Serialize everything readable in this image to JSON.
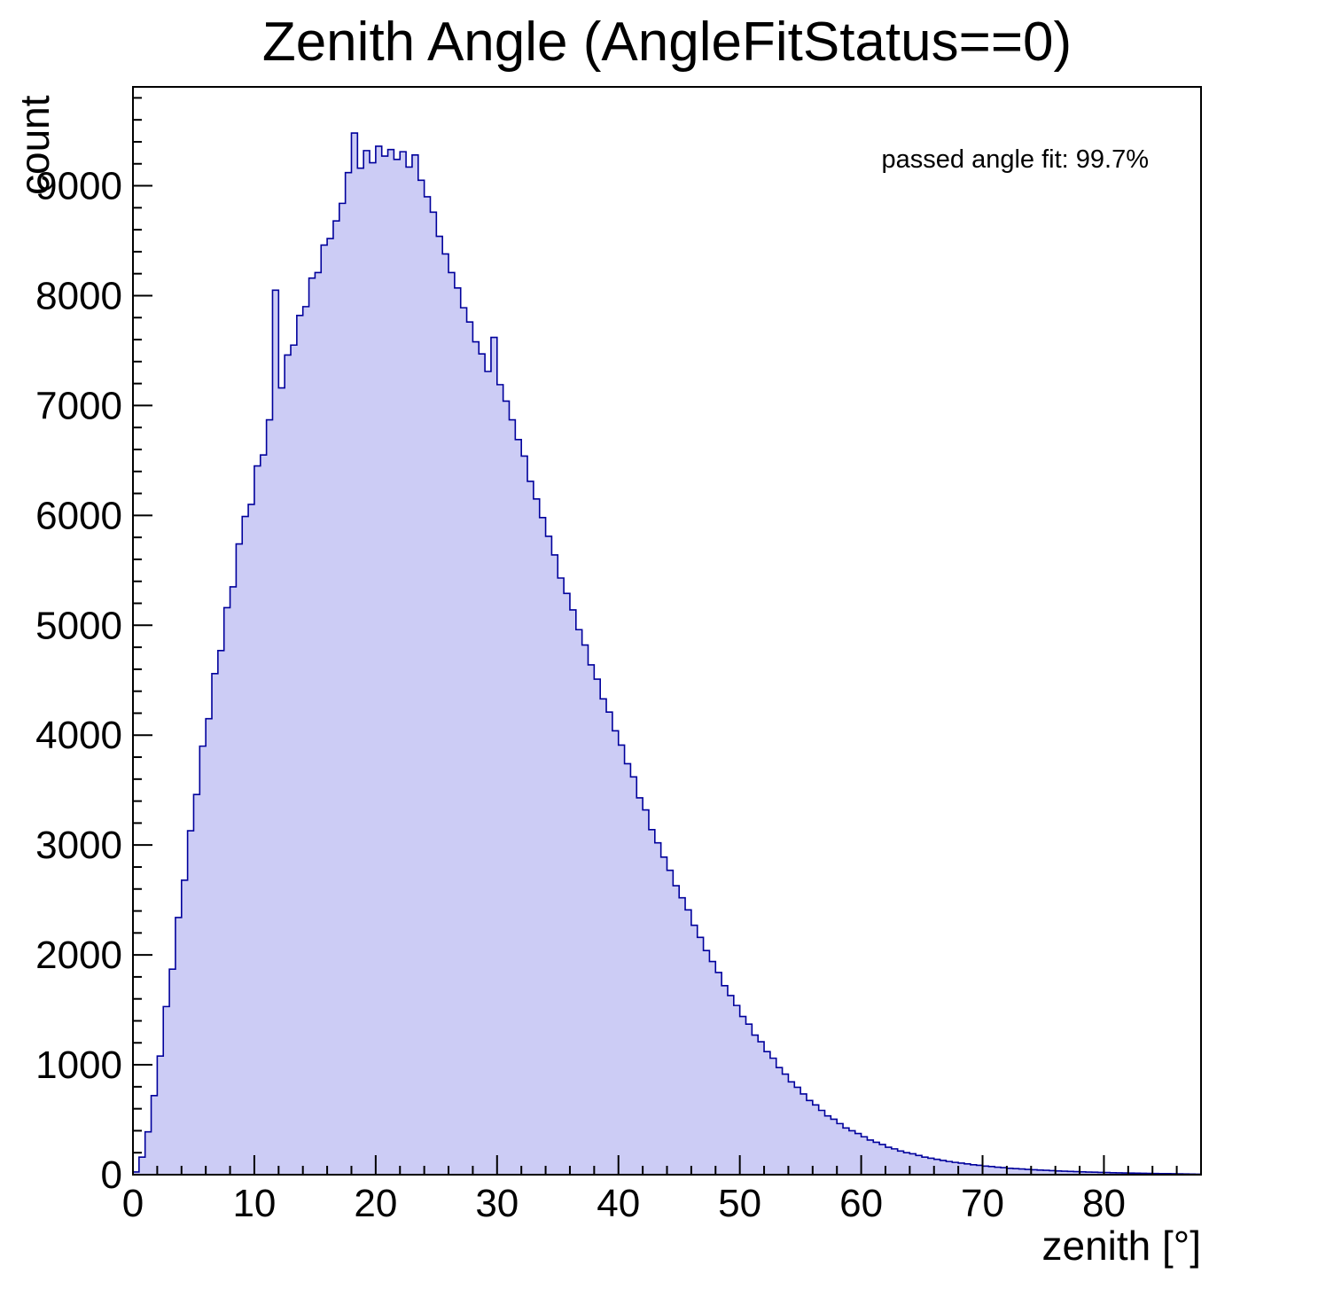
{
  "chart_data": {
    "type": "bar",
    "style": "histogram",
    "title": "Zenith Angle (AngleFitStatus==0)",
    "xlabel": "zenith [°]",
    "ylabel": "count",
    "annotation": "passed angle fit: 99.7%",
    "xlim": [
      0,
      88
    ],
    "ylim": [
      0,
      9900
    ],
    "bin_start": 0,
    "bin_width": 0.5,
    "values": [
      25,
      160,
      390,
      720,
      1080,
      1530,
      1870,
      2340,
      2680,
      3130,
      3460,
      3900,
      4150,
      4560,
      4770,
      5160,
      5350,
      5740,
      5990,
      6100,
      6450,
      6550,
      6870,
      8050,
      7160,
      7460,
      7550,
      7820,
      7900,
      8160,
      8210,
      8460,
      8520,
      8680,
      8840,
      9120,
      9480,
      9160,
      9320,
      9210,
      9360,
      9270,
      9330,
      9240,
      9310,
      9170,
      9280,
      9050,
      8900,
      8760,
      8540,
      8380,
      8210,
      8070,
      7890,
      7760,
      7580,
      7470,
      7310,
      7620,
      7190,
      7040,
      6870,
      6690,
      6540,
      6310,
      6150,
      5980,
      5810,
      5640,
      5430,
      5290,
      5140,
      4960,
      4820,
      4640,
      4510,
      4330,
      4210,
      4040,
      3910,
      3740,
      3620,
      3430,
      3320,
      3140,
      3020,
      2890,
      2770,
      2630,
      2520,
      2410,
      2270,
      2160,
      2040,
      1940,
      1840,
      1720,
      1630,
      1540,
      1440,
      1370,
      1270,
      1210,
      1120,
      1060,
      975,
      915,
      845,
      795,
      735,
      675,
      635,
      585,
      535,
      505,
      465,
      425,
      400,
      375,
      345,
      315,
      295,
      275,
      250,
      235,
      215,
      200,
      190,
      175,
      160,
      150,
      140,
      130,
      120,
      112,
      105,
      98,
      90,
      85,
      78,
      74,
      68,
      64,
      58,
      55,
      52,
      48,
      45,
      42,
      40,
      37,
      34,
      32,
      30,
      28,
      26,
      24,
      23,
      21,
      20,
      18,
      17,
      16,
      15,
      14,
      13,
      12,
      11,
      10,
      10,
      9,
      8,
      7,
      6,
      5
    ],
    "x_tick_labels": [
      0,
      10,
      20,
      30,
      40,
      50,
      60,
      70,
      80
    ],
    "y_tick_labels": [
      0,
      1000,
      2000,
      3000,
      4000,
      5000,
      6000,
      7000,
      8000,
      9000
    ],
    "x_minor_tick_step": 2,
    "y_minor_tick_step": 200,
    "x_major_tick_step": 10,
    "y_major_tick_step": 1000,
    "fill_color": "#ccccf5",
    "line_color": "#00009c",
    "frame_color": "#000000",
    "grid": false,
    "legend": "none"
  }
}
